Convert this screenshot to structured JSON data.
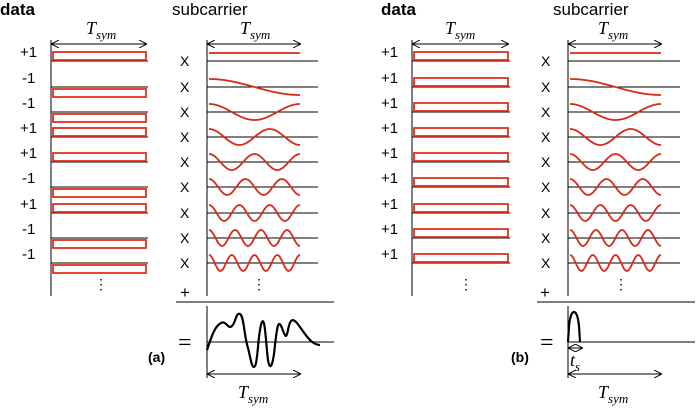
{
  "headers": {
    "data": "data",
    "subcarrier": "subcarrier"
  },
  "symbols": {
    "multiply": "X",
    "plus": "+",
    "equals": "=",
    "ellipsis": "⋮"
  },
  "period": {
    "main": "T",
    "sub": "sym"
  },
  "pulse_width": {
    "main": "t",
    "sub": "s"
  },
  "panels": [
    {
      "label": "(a)",
      "data_values": [
        "+1",
        "-1",
        "-1",
        "+1",
        "+1",
        "-1",
        "+1",
        "-1",
        "-1"
      ],
      "subcarrier_cycles": [
        0,
        0.5,
        1,
        1.5,
        2,
        2.5,
        3,
        3.5,
        4
      ],
      "sum_waveform": "irregular"
    },
    {
      "label": "(b)",
      "data_values": [
        "+1",
        "+1",
        "+1",
        "+1",
        "+1",
        "+1",
        "+1",
        "+1",
        "+1"
      ],
      "subcarrier_cycles": [
        0,
        0.5,
        1,
        1.5,
        2,
        2.5,
        3,
        3.5,
        4
      ],
      "sum_waveform": "single-pulse"
    }
  ],
  "colors": {
    "symbol_box": "#e0301e",
    "subcarrier_wave": "#d62a1a",
    "line": "#000000"
  }
}
